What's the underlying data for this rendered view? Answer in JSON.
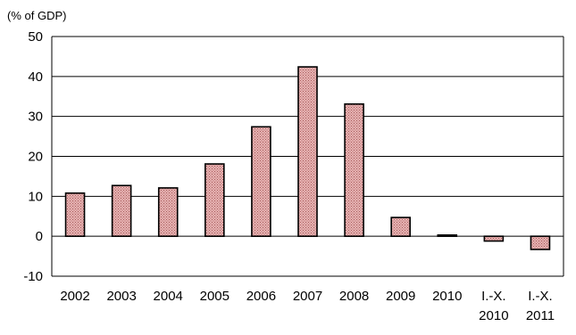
{
  "chart_data": {
    "type": "bar",
    "ylabel": "(% of GDP)",
    "categories": [
      [
        "2002"
      ],
      [
        "2003"
      ],
      [
        "2004"
      ],
      [
        "2005"
      ],
      [
        "2006"
      ],
      [
        "2007"
      ],
      [
        "2008"
      ],
      [
        "2009"
      ],
      [
        "2010"
      ],
      [
        "I.-X.",
        "2010"
      ],
      [
        "I.-X.",
        "2011"
      ]
    ],
    "values": [
      10.8,
      12.7,
      12.1,
      18.1,
      27.4,
      42.4,
      33.1,
      4.7,
      0.3,
      -1.2,
      -3.3
    ],
    "ylim": [
      -10,
      50
    ],
    "yticks": [
      -10,
      0,
      10,
      20,
      30,
      40,
      50
    ],
    "grid": true,
    "bar_color": "#d89a9a"
  }
}
